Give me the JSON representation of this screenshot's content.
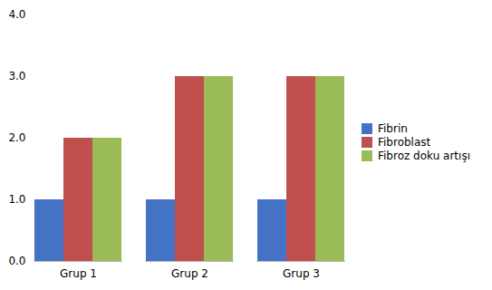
{
  "chart_data": {
    "type": "bar",
    "categories": [
      "Grup 1",
      "Grup 2",
      "Grup 3"
    ],
    "series": [
      {
        "name": "Fibrin",
        "color": "#4472C4",
        "values": [
          1,
          1,
          1
        ]
      },
      {
        "name": "Fibroblast",
        "color": "#C0504D",
        "values": [
          2,
          3,
          3
        ]
      },
      {
        "name": "Fibroz doku artışı",
        "color": "#9BBB59",
        "values": [
          2,
          3,
          3
        ]
      }
    ],
    "ylim": [
      0,
      4
    ],
    "yticks": [
      0,
      1,
      2,
      3,
      4
    ],
    "grid": false,
    "legend": "right"
  }
}
